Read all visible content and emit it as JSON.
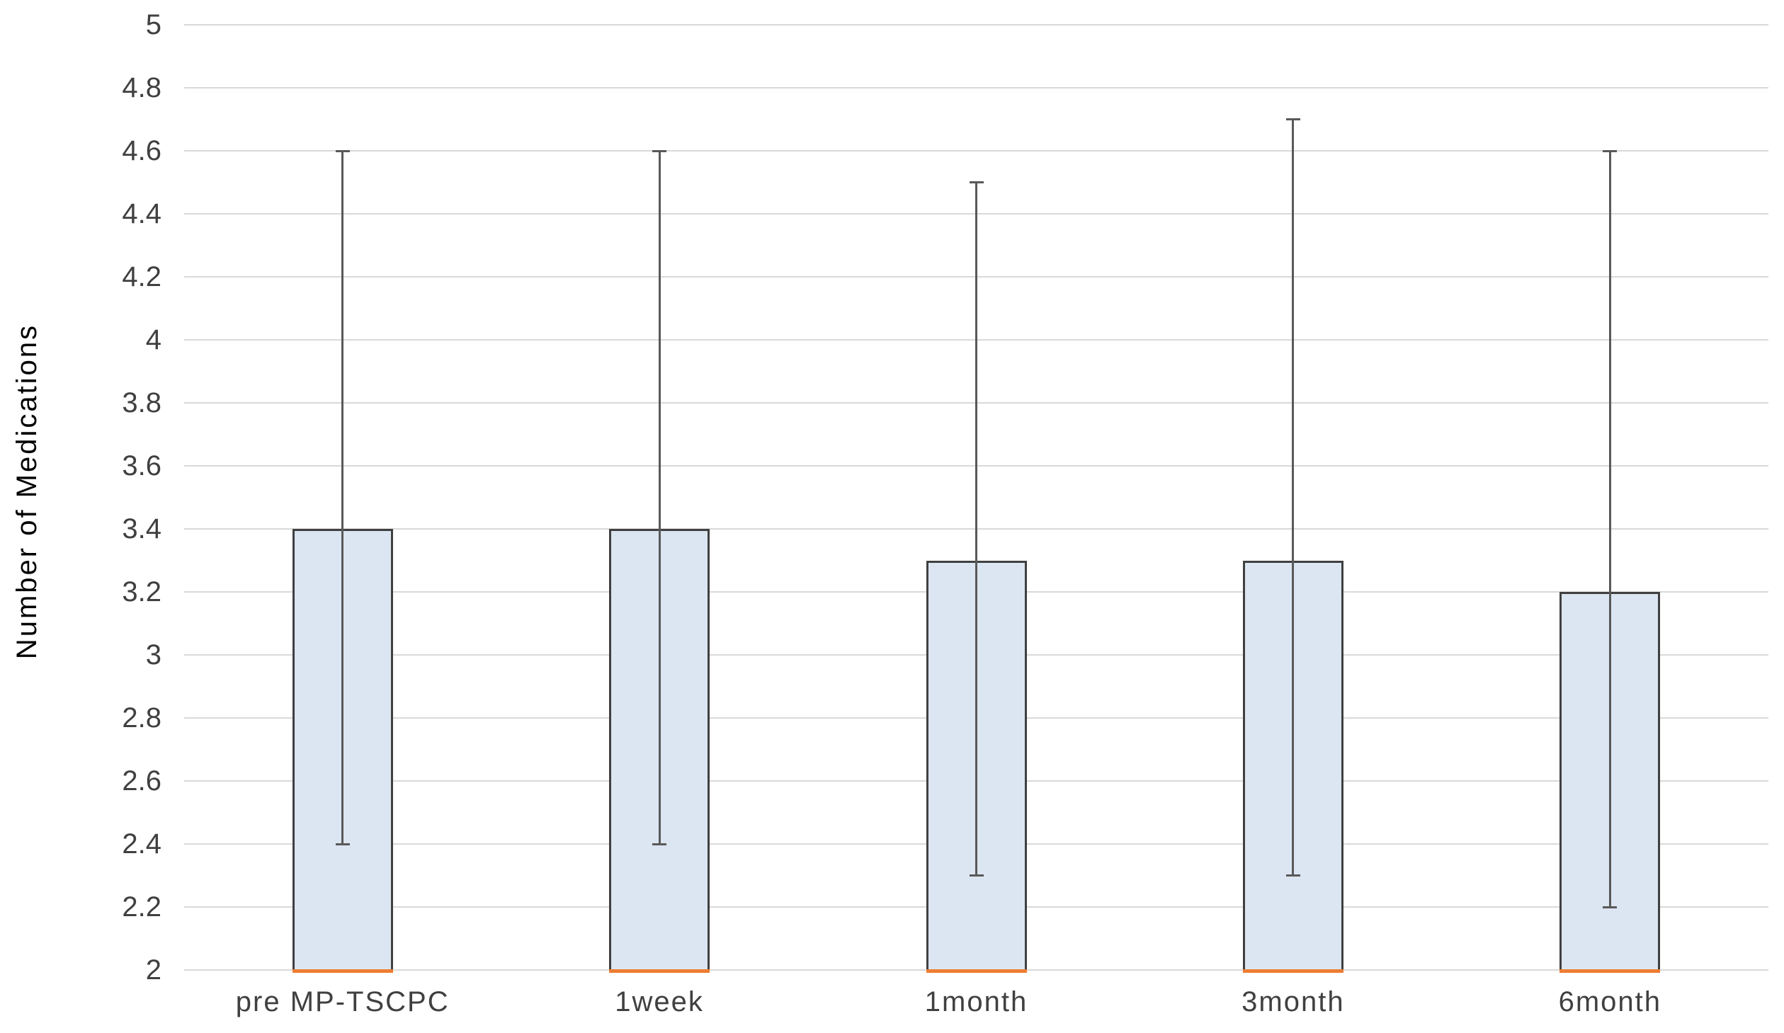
{
  "chart_data": {
    "type": "bar",
    "title": "",
    "xlabel": "",
    "ylabel": "Number of Medications",
    "categories": [
      "pre MP-TSCPC",
      "1week",
      "1month",
      "3month",
      "6month"
    ],
    "series": [
      {
        "name": "Number of Medications",
        "values": [
          3.4,
          3.4,
          3.3,
          3.3,
          3.2
        ],
        "error_high": [
          4.6,
          4.6,
          4.5,
          4.7,
          4.6
        ],
        "error_low": [
          2.4,
          2.4,
          2.3,
          2.3,
          2.2
        ]
      }
    ],
    "ylim": [
      2,
      5
    ],
    "ytick_step": 0.2,
    "ytick_labels": [
      "2",
      "2.2",
      "2.4",
      "2.6",
      "2.8",
      "3",
      "3.2",
      "3.4",
      "3.6",
      "3.8",
      "4",
      "4.2",
      "4.4",
      "4.6",
      "4.8",
      "5"
    ],
    "bar_base": 2,
    "grid": true,
    "legend": false
  },
  "colors": {
    "background": "#ffffff",
    "gridline": "#d9d9d9",
    "bar_fill": "#dce6f2",
    "bar_border": "#404040",
    "error_bar": "#595959",
    "base_accent": "#ed7d31",
    "tick_label": "#404040",
    "axis_title": "#000000"
  }
}
